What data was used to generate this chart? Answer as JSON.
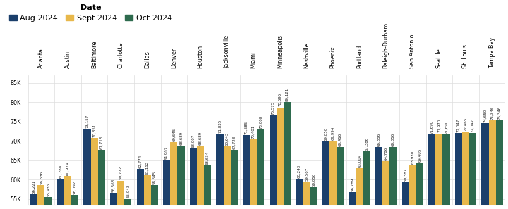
{
  "categories": [
    "Atlanta",
    "Austin",
    "Baltimore",
    "Charlotte",
    "Dallas",
    "Denver",
    "Houston",
    "Jacksonville",
    "Miami",
    "Minneapolis",
    "Nashville",
    "Phoenix",
    "Portland",
    "Raleigh-Durham",
    "San Antonio",
    "Seattle",
    "St. Louis",
    "Tampa Bay"
  ],
  "aug_2024": [
    56221,
    60288,
    73157,
    56563,
    62774,
    64907,
    68007,
    71835,
    71585,
    76575,
    60243,
    69850,
    56789,
    68356,
    59387,
    71690,
    72047,
    74650
  ],
  "sept_2024": [
    58536,
    60974,
    70851,
    59772,
    61112,
    69645,
    68689,
    68643,
    70401,
    78695,
    59507,
    69994,
    63004,
    64786,
    63930,
    71970,
    72465,
    75346
  ],
  "oct_2024": [
    55436,
    56092,
    67713,
    55043,
    58545,
    68689,
    63634,
    67728,
    73008,
    80121,
    58056,
    68416,
    67386,
    68356,
    64405,
    71690,
    72047,
    75346
  ],
  "color_aug": "#1b3f6b",
  "color_sept": "#e8b84b",
  "color_oct": "#2e6b4e",
  "ylim_min": 53500,
  "ylim_max": 87000,
  "yticks": [
    55000,
    60000,
    65000,
    70000,
    75000,
    80000,
    85000
  ],
  "ytick_labels": [
    "55K",
    "60K",
    "65K",
    "70K",
    "75K",
    "80K",
    "85K"
  ],
  "legend_title": "Date",
  "legend_labels": [
    "Aug 2024",
    "Sept 2024",
    "Oct 2024"
  ],
  "bar_width": 0.27,
  "value_fontsize": 4.0,
  "label_fontsize": 5.8,
  "legend_fontsize": 8.0,
  "bg_color": "#ffffff",
  "grid_color": "#dddddd"
}
